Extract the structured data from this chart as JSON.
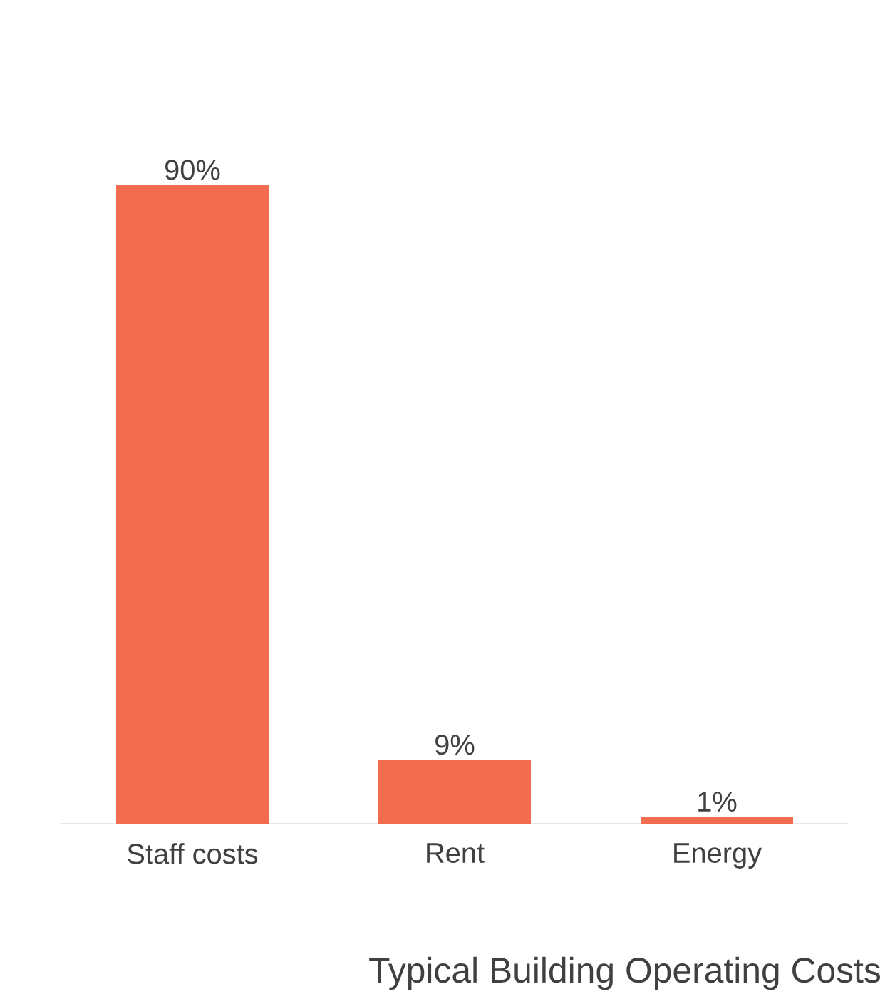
{
  "chart_data": {
    "type": "bar",
    "title": "Typical Building Operating Costs",
    "categories": [
      "Staff costs",
      "Rent",
      "Energy"
    ],
    "values": [
      90,
      9,
      1
    ],
    "value_labels": [
      "90%",
      "9%",
      "1%"
    ],
    "color": "#f26d4f"
  }
}
